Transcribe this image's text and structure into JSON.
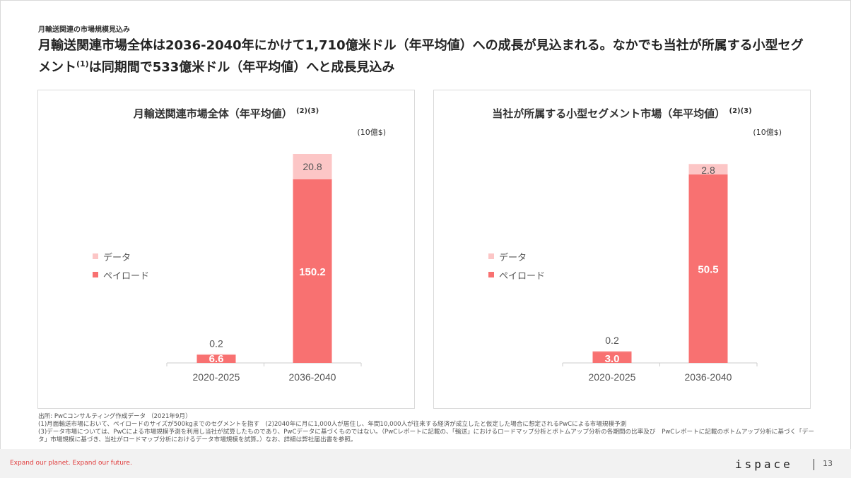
{
  "section_label": "月輸送関連の市場規模見込み",
  "headline": {
    "part1": "月輸送関連市場全体は2036-2040年にかけて1,710億米ドル（年平均値）への成長が見込まれる。なかでも当社が所属する小型セグメント",
    "sup": "(1)",
    "part2": "は同期間で533億米ドル（年平均値）へと成長見込み"
  },
  "colors": {
    "payload": "#f87171",
    "data": "#fcc6c6",
    "axis": "#cccccc",
    "accent": "#e03c3c"
  },
  "legend": {
    "data": "データ",
    "payload": "ペイロード"
  },
  "chart_data": [
    {
      "type": "bar",
      "title": "月輸送関連市場全体（年平均値）",
      "title_sup": "(2)(3)",
      "unit": "(10億$)",
      "categories": [
        "2020-2025",
        "2036-2040"
      ],
      "stacked": true,
      "series": [
        {
          "name": "ペイロード",
          "values": [
            6.6,
            150.2
          ]
        },
        {
          "name": "データ",
          "values": [
            0.2,
            20.8
          ]
        }
      ],
      "ylim": [
        0,
        171
      ]
    },
    {
      "type": "bar",
      "title": "当社が所属する小型セグメント市場（年平均値）",
      "title_sup": "(2)(3)",
      "unit": "(10億$)",
      "categories": [
        "2020-2025",
        "2036-2040"
      ],
      "stacked": true,
      "series": [
        {
          "name": "ペイロード",
          "values": [
            3.0,
            50.5
          ]
        },
        {
          "name": "データ",
          "values": [
            0.2,
            2.8
          ]
        }
      ],
      "ylim": [
        0,
        56
      ]
    }
  ],
  "footnotes": [
    "出所: PwCコンサルティング作成データ （2021年9月）",
    "(1)月面輸送市場において、ペイロードのサイズが500kgまでのセグメントを指す　(2)2040年に月に1,000人が居住し、年間10,000人が往来する経済が成立したと仮定した場合に想定されるPwCによる市場規模予測",
    "(3)データ市場については、PwCによる市場規模予測を利用し当社が試算したものであり、PwCデータに基づくものではない。（PwCレポートに記載の、「輸送」におけるロードマップ分析とボトムアップ分析の各期間の比率及び　PwCレポートに記載のボトムアップ分析に基づく「データ」市場規模に基づき、当社がロードマップ分析におけるデータ市場規模を試算。）なお、詳細は弊社届出書を参照。"
  ],
  "footer": {
    "tagline": "Expand our planet. Expand our future.",
    "logo": "ispace",
    "page": "13"
  }
}
